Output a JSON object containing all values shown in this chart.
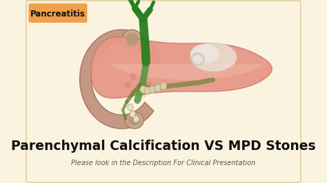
{
  "bg_color": "#faf3e0",
  "border_color": "#e8d5a8",
  "title_text": "Parenchymal Calcification VS MPD Stones",
  "subtitle_text": "Please look in the Description For Clinical Presentation",
  "tag_text": "Pancreatitis",
  "tag_bg": "#f0a04a",
  "title_color": "#111111",
  "subtitle_color": "#555555",
  "title_fontsize": 13.5,
  "subtitle_fontsize": 7.0,
  "tag_fontsize": 8.5,
  "fig_width": 4.74,
  "fig_height": 2.66,
  "dpi": 100,
  "duodenum_color": "#c0907a",
  "pancreas_color": "#e89888",
  "pancreas_dark": "#d07868",
  "pancreas_light": "#f5c0b0",
  "white_area": "#ede8e0",
  "green_duct": "#2a8020",
  "green_duct2": "#4a9840",
  "yellow_duct": "#9a9040",
  "stone_color": "#d8d0a8",
  "calc_color": "#e8e0c8"
}
